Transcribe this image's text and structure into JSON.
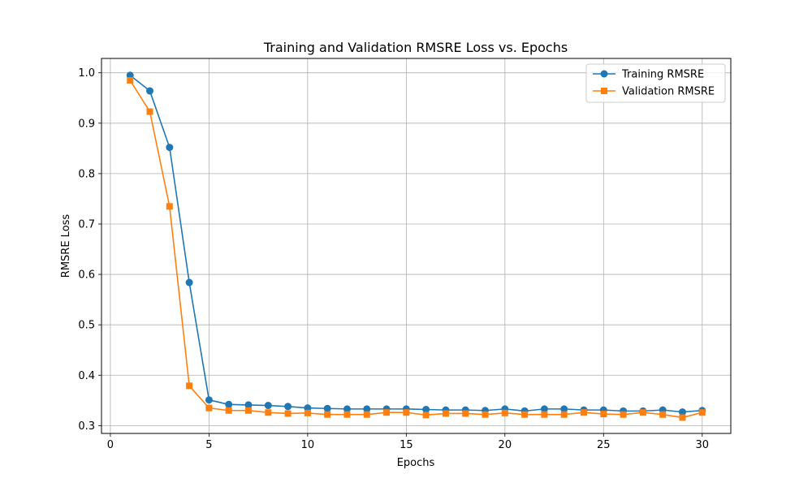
{
  "chart_data": {
    "type": "line",
    "title": "Training and Validation RMSRE Loss vs. Epochs",
    "xlabel": "Epochs",
    "ylabel": "RMSRE Loss",
    "xlim": [
      -0.45,
      31.45
    ],
    "ylim": [
      0.2845,
      1.0285
    ],
    "xticks": [
      0,
      5,
      10,
      15,
      20,
      25,
      30
    ],
    "yticks": [
      0.3,
      0.4,
      0.5,
      0.6,
      0.7,
      0.8,
      0.9,
      1.0
    ],
    "ytick_labels": [
      "0.3",
      "0.4",
      "0.5",
      "0.6",
      "0.7",
      "0.8",
      "0.9",
      "1.0"
    ],
    "grid": true,
    "legend_position": "top-right",
    "x": [
      1,
      2,
      3,
      4,
      5,
      6,
      7,
      8,
      9,
      10,
      11,
      12,
      13,
      14,
      15,
      16,
      17,
      18,
      19,
      20,
      21,
      22,
      23,
      24,
      25,
      26,
      27,
      28,
      29,
      30
    ],
    "series": [
      {
        "name": "Training RMSRE",
        "color": "#1f77b4",
        "marker": "circle",
        "values": [
          0.995,
          0.964,
          0.852,
          0.584,
          0.351,
          0.342,
          0.341,
          0.34,
          0.338,
          0.335,
          0.334,
          0.333,
          0.333,
          0.333,
          0.333,
          0.332,
          0.331,
          0.331,
          0.33,
          0.333,
          0.329,
          0.333,
          0.333,
          0.331,
          0.331,
          0.329,
          0.329,
          0.331,
          0.327,
          0.33
        ]
      },
      {
        "name": "Validation RMSRE",
        "color": "#ff7f0e",
        "marker": "square",
        "values": [
          0.985,
          0.923,
          0.735,
          0.379,
          0.335,
          0.33,
          0.33,
          0.326,
          0.324,
          0.325,
          0.322,
          0.322,
          0.322,
          0.326,
          0.326,
          0.321,
          0.324,
          0.324,
          0.322,
          0.325,
          0.322,
          0.322,
          0.322,
          0.326,
          0.323,
          0.322,
          0.326,
          0.322,
          0.316,
          0.326
        ]
      }
    ]
  }
}
